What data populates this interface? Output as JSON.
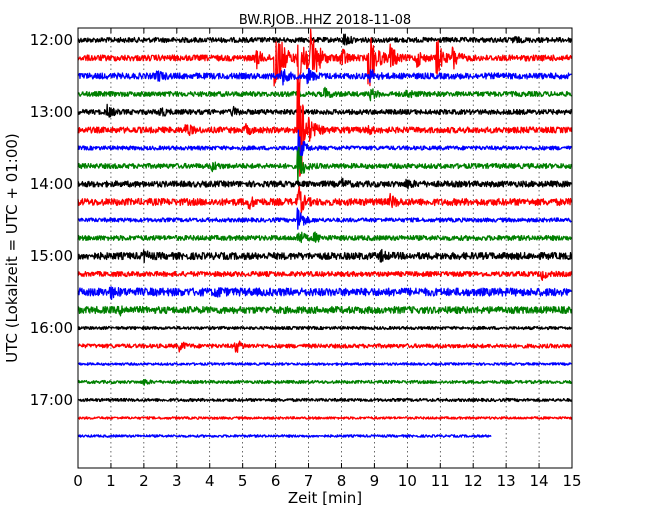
{
  "chart_data": {
    "type": "line",
    "title": "BW.RJOB..HHZ 2018-11-08",
    "xlabel": "Zeit  [min]",
    "ylabel": "UTC (Lokalzeit = UTC + 01:00)",
    "xlim": [
      0,
      15
    ],
    "x_ticks": [
      "0",
      "1",
      "2",
      "3",
      "4",
      "5",
      "6",
      "7",
      "8",
      "9",
      "10",
      "11",
      "12",
      "13",
      "14",
      "15"
    ],
    "y_ticks": [
      "12:00",
      "13:00",
      "14:00",
      "15:00",
      "16:00",
      "17:00"
    ],
    "grid": true,
    "trace_interval_minutes": 15,
    "line_colors": [
      "#000000",
      "#ff0000",
      "#0000ff",
      "#008000"
    ],
    "traces": [
      {
        "start": "12:00",
        "end_min": 15,
        "amp": 2.5,
        "events": [
          {
            "x": 8.1,
            "a": 6
          },
          {
            "x": 13.2,
            "a": 3
          }
        ]
      },
      {
        "start": "12:15",
        "end_min": 15,
        "amp": 3,
        "events": [
          {
            "x": 5.4,
            "a": 10
          },
          {
            "x": 6.0,
            "a": 40
          },
          {
            "x": 6.7,
            "a": 45
          },
          {
            "x": 7.1,
            "a": 25
          },
          {
            "x": 8.0,
            "a": 12
          },
          {
            "x": 8.85,
            "a": 30
          },
          {
            "x": 9.5,
            "a": 14
          },
          {
            "x": 10.3,
            "a": 8
          },
          {
            "x": 10.9,
            "a": 20
          },
          {
            "x": 11.4,
            "a": 12
          }
        ]
      },
      {
        "start": "12:30",
        "end_min": 15,
        "amp": 3,
        "events": [
          {
            "x": 2.4,
            "a": 6
          },
          {
            "x": 6.2,
            "a": 8
          },
          {
            "x": 7.0,
            "a": 7
          },
          {
            "x": 8.9,
            "a": 6
          }
        ]
      },
      {
        "start": "12:45",
        "end_min": 15,
        "amp": 2.5,
        "events": [
          {
            "x": 7.5,
            "a": 5
          },
          {
            "x": 8.9,
            "a": 5
          },
          {
            "x": 10.0,
            "a": 4
          }
        ]
      },
      {
        "start": "13:00",
        "end_min": 15,
        "amp": 2.5,
        "events": [
          {
            "x": 0.9,
            "a": 6
          },
          {
            "x": 2.5,
            "a": 5
          },
          {
            "x": 4.7,
            "a": 4
          }
        ]
      },
      {
        "start": "13:15",
        "end_min": 15,
        "amp": 3,
        "events": [
          {
            "x": 3.3,
            "a": 6
          },
          {
            "x": 5.1,
            "a": 4
          },
          {
            "x": 6.7,
            "a": 60
          },
          {
            "x": 8.8,
            "a": 4
          }
        ]
      },
      {
        "start": "13:30",
        "end_min": 15,
        "amp": 2,
        "events": [
          {
            "x": 6.7,
            "a": 20
          }
        ]
      },
      {
        "start": "13:45",
        "end_min": 15,
        "amp": 2.5,
        "events": [
          {
            "x": 4.1,
            "a": 4
          },
          {
            "x": 6.7,
            "a": 20
          }
        ]
      },
      {
        "start": "14:00",
        "end_min": 15,
        "amp": 3,
        "events": [
          {
            "x": 8.0,
            "a": 4
          },
          {
            "x": 10.0,
            "a": 4
          }
        ]
      },
      {
        "start": "14:15",
        "end_min": 15,
        "amp": 3.5,
        "events": [
          {
            "x": 5.2,
            "a": 5
          },
          {
            "x": 6.7,
            "a": 15
          },
          {
            "x": 9.5,
            "a": 6
          }
        ]
      },
      {
        "start": "14:30",
        "end_min": 15,
        "amp": 2,
        "events": [
          {
            "x": 6.7,
            "a": 15
          }
        ]
      },
      {
        "start": "14:45",
        "end_min": 15,
        "amp": 2.5,
        "events": [
          {
            "x": 6.7,
            "a": 8
          },
          {
            "x": 7.2,
            "a": 4
          }
        ]
      },
      {
        "start": "15:00",
        "end_min": 15,
        "amp": 3.5,
        "events": [
          {
            "x": 2.0,
            "a": 4
          },
          {
            "x": 9.2,
            "a": 4
          }
        ]
      },
      {
        "start": "15:15",
        "end_min": 15,
        "amp": 2.5,
        "events": [
          {
            "x": 14.1,
            "a": 4
          }
        ]
      },
      {
        "start": "15:30",
        "end_min": 15,
        "amp": 4,
        "events": [
          {
            "x": 1.0,
            "a": 4
          },
          {
            "x": 4.2,
            "a": 4
          }
        ]
      },
      {
        "start": "15:45",
        "end_min": 15,
        "amp": 3.5,
        "events": [
          {
            "x": 1.3,
            "a": 3
          }
        ]
      },
      {
        "start": "16:00",
        "end_min": 15,
        "amp": 1.5,
        "events": []
      },
      {
        "start": "16:15",
        "end_min": 15,
        "amp": 2,
        "events": [
          {
            "x": 3.1,
            "a": 5
          },
          {
            "x": 4.8,
            "a": 7
          }
        ]
      },
      {
        "start": "16:30",
        "end_min": 15,
        "amp": 1.2,
        "events": []
      },
      {
        "start": "16:45",
        "end_min": 15,
        "amp": 1.5,
        "events": [
          {
            "x": 2.0,
            "a": 3
          }
        ]
      },
      {
        "start": "17:00",
        "end_min": 15,
        "amp": 1.5,
        "events": []
      },
      {
        "start": "17:15",
        "end_min": 15,
        "amp": 1.2,
        "events": []
      },
      {
        "start": "17:30",
        "end_min": 12.55,
        "amp": 1.2,
        "events": []
      }
    ]
  }
}
